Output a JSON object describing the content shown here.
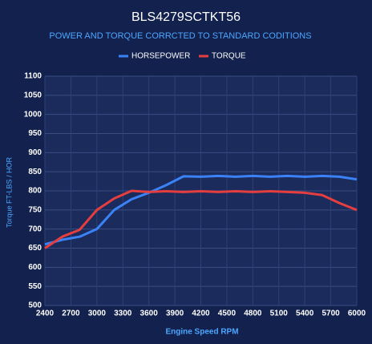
{
  "chart_data": {
    "type": "line",
    "title": "BLS4279SCTKT56",
    "subtitle": "POWER AND TORQUE CORRCTED TO STANDARD CODITIONS",
    "x_label": "Engine Speed RPM",
    "y_label": "Torque FT-LBS / HOR",
    "x": [
      2400,
      2600,
      2800,
      3000,
      3200,
      3400,
      3600,
      3800,
      4000,
      4200,
      4400,
      4600,
      4800,
      5000,
      5200,
      5400,
      5600,
      5800,
      6000
    ],
    "series": [
      {
        "name": "HORSEPOWER",
        "color": "#3b82f6",
        "values": [
          660,
          672,
          680,
          700,
          750,
          778,
          795,
          815,
          838,
          837,
          839,
          837,
          839,
          837,
          839,
          837,
          839,
          837,
          830
        ]
      },
      {
        "name": "TORQUE",
        "color": "#e53e3e",
        "values": [
          650,
          680,
          698,
          750,
          780,
          800,
          797,
          799,
          797,
          799,
          797,
          799,
          797,
          799,
          797,
          795,
          789,
          768,
          750
        ]
      }
    ],
    "xlim": [
      2400,
      6000
    ],
    "xticks": [
      2400,
      2700,
      3000,
      3300,
      3600,
      3900,
      4200,
      4500,
      4800,
      5100,
      5400,
      5700,
      6000
    ],
    "ylim": [
      500,
      1100
    ],
    "yticks": [
      500,
      550,
      600,
      650,
      700,
      750,
      800,
      850,
      900,
      950,
      1000,
      1050,
      1100
    ],
    "grid": true,
    "legend": "top"
  }
}
